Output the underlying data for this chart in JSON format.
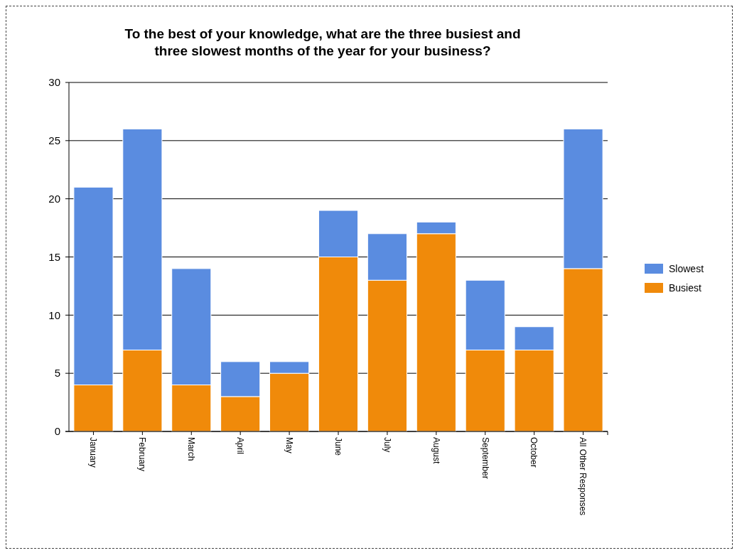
{
  "chart_data": {
    "type": "bar",
    "title": "To the best of your knowledge, what are the three busiest and three slowest months of the year for your business?",
    "categories": [
      "January",
      "February",
      "March",
      "April",
      "May",
      "June",
      "July",
      "August",
      "September",
      "October",
      "All Other Responses"
    ],
    "series": [
      {
        "name": "Busiest",
        "color": "#f08a0a",
        "values": [
          4,
          7,
          4,
          3,
          5,
          15,
          13,
          17,
          7,
          7,
          14
        ]
      },
      {
        "name": "Slowest",
        "color": "#5a8ce0",
        "values": [
          17,
          19,
          10,
          3,
          1,
          4,
          4,
          1,
          6,
          2,
          12
        ]
      }
    ],
    "stacked": true,
    "ylim": [
      0,
      30
    ],
    "yticks": [
      0,
      5,
      10,
      15,
      20,
      25,
      30
    ],
    "grid": "y",
    "legend": "right"
  }
}
